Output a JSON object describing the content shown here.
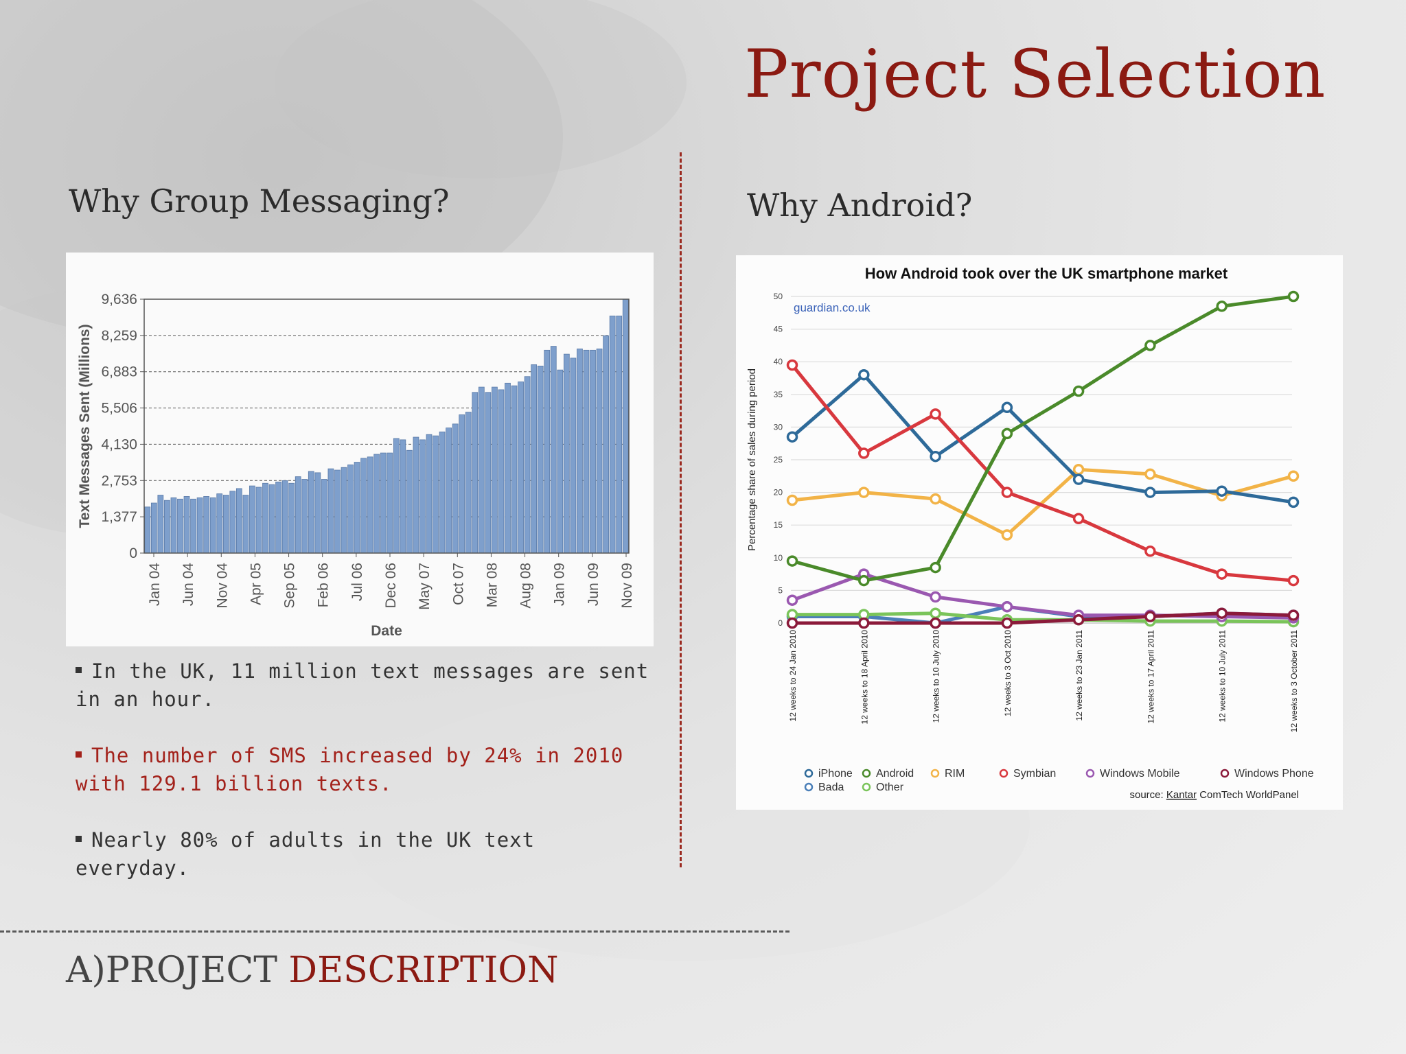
{
  "title": "Project Selection",
  "left": {
    "heading": "Why Group Messaging?",
    "bullets": [
      {
        "text": "In the UK, 11 million text messages are sent in an hour.",
        "color": "#333333"
      },
      {
        "text": "The number of SMS increased by 24% in 2010 with 129.1 billion texts.",
        "color": "#a3221b"
      },
      {
        "text": "Nearly 80% of adults in the UK text everyday.",
        "color": "#333333"
      }
    ]
  },
  "right": {
    "heading": "Why Android?"
  },
  "section": {
    "prefix": "A)PROJECT ",
    "highlight": "DESCRIPTION"
  },
  "colors": {
    "accent": "#8b1a12",
    "bar": "#7e9fcc"
  },
  "chart_data": [
    {
      "type": "bar",
      "title": "",
      "xlabel": "Date",
      "ylabel": "Text Messages Sent (Millions)",
      "ylim": [
        0,
        9636
      ],
      "yticks": [
        0,
        1377,
        2753,
        4130,
        5506,
        6883,
        8259,
        9636
      ],
      "ytick_labels": [
        "0",
        "1,377",
        "2,753",
        "4,130",
        "5,506",
        "6,883",
        "8,259",
        "9,636"
      ],
      "xtick_labels": [
        "Jan 04",
        "Jun 04",
        "Nov 04",
        "Apr 05",
        "Sep 05",
        "Feb 06",
        "Jul 06",
        "Dec 06",
        "May 07",
        "Oct 07",
        "Mar 08",
        "Aug 08",
        "Jan 09",
        "Jun 09",
        "Nov 09"
      ],
      "grid": true,
      "values": [
        1750,
        1900,
        2200,
        2000,
        2100,
        2050,
        2150,
        2050,
        2100,
        2150,
        2100,
        2250,
        2200,
        2350,
        2450,
        2200,
        2550,
        2500,
        2650,
        2600,
        2700,
        2750,
        2650,
        2900,
        2800,
        3100,
        3050,
        2800,
        3200,
        3150,
        3250,
        3350,
        3450,
        3600,
        3650,
        3750,
        3800,
        3800,
        4350,
        4300,
        3900,
        4400,
        4300,
        4500,
        4450,
        4600,
        4750,
        4900,
        5250,
        5350,
        6100,
        6300,
        6100,
        6300,
        6200,
        6450,
        6350,
        6500,
        6700,
        7150,
        7100,
        7700,
        7850,
        6950,
        7550,
        7400,
        7750,
        7700,
        7700,
        7750,
        8250,
        9000,
        9000,
        9636
      ]
    },
    {
      "type": "line",
      "title": "How Android took over the UK smartphone market",
      "annotation": "guardian.co.uk",
      "source_prefix": "source: ",
      "source_brand": "Kantar",
      "source_rest": " ComTech WorldPanel",
      "ylabel": "Percentage share of sales during period",
      "ylim": [
        0,
        50
      ],
      "yticks": [
        0,
        5,
        10,
        15,
        20,
        25,
        30,
        35,
        40,
        45,
        50
      ],
      "legend_position": "bottom",
      "grid": true,
      "categories": [
        "12 weeks to 24 Jan 2010",
        "12 weeks to 18 April 2010",
        "12 weeks to 10 July 2010",
        "12 weeks to 3 Oct 2010",
        "12 weeks to 23 Jan 2011",
        "12 weeks to 17 April 2011",
        "12 weeks to 10 July 2011",
        "12 weeks to 3 October 2011"
      ],
      "series": [
        {
          "name": "iPhone",
          "color": "#2e6a99",
          "values": [
            28.5,
            38,
            25.5,
            33,
            22,
            20,
            20.2,
            18.5
          ]
        },
        {
          "name": "Android",
          "color": "#4a8a2a",
          "values": [
            9.5,
            6.5,
            8.5,
            29,
            35.5,
            42.5,
            48.5,
            50
          ]
        },
        {
          "name": "RIM",
          "color": "#f2b347",
          "values": [
            18.8,
            20,
            19,
            13.5,
            23.5,
            22.8,
            19.5,
            22.5
          ]
        },
        {
          "name": "Symbian",
          "color": "#d8383e",
          "values": [
            39.5,
            26,
            32,
            20,
            16,
            11,
            7.5,
            6.5
          ]
        },
        {
          "name": "Windows Mobile",
          "color": "#9a58b0",
          "values": [
            3.5,
            7.5,
            4,
            2.5,
            1.2,
            1.2,
            1,
            0.8
          ]
        },
        {
          "name": "Windows Phone",
          "color": "#8b1a3a",
          "values": [
            0,
            0,
            0,
            0,
            0.5,
            1,
            1.5,
            1.2
          ]
        },
        {
          "name": "Bada",
          "color": "#4b7fb8",
          "values": [
            1,
            1,
            0,
            2.5,
            1,
            1,
            1.5,
            1.2
          ]
        },
        {
          "name": "Other",
          "color": "#7ac45a",
          "values": [
            1.3,
            1.3,
            1.5,
            0.5,
            0.5,
            0.3,
            0.3,
            0.2
          ]
        }
      ]
    }
  ]
}
